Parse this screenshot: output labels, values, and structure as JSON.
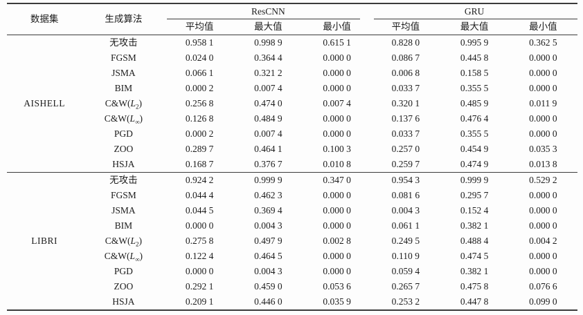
{
  "table": {
    "headers": {
      "dataset": "数据集",
      "algorithm": "生成算法",
      "group1": "ResCNN",
      "group2": "GRU",
      "sub": [
        "平均值",
        "最大值",
        "最小值"
      ]
    },
    "groups": [
      {
        "dataset": "AISHELL",
        "rows": [
          {
            "alg": "无攻击",
            "values": [
              "0.958 1",
              "0.998 9",
              "0.615 1",
              "0.828 0",
              "0.995 9",
              "0.362 5"
            ]
          },
          {
            "alg": "FGSM",
            "values": [
              "0.024 0",
              "0.364 4",
              "0.000 0",
              "0.086 7",
              "0.445 8",
              "0.000 0"
            ]
          },
          {
            "alg": "JSMA",
            "values": [
              "0.066 1",
              "0.321 2",
              "0.000 0",
              "0.006 8",
              "0.158 5",
              "0.000 0"
            ]
          },
          {
            "alg": "BIM",
            "values": [
              "0.000 2",
              "0.007 4",
              "0.000 0",
              "0.033 7",
              "0.355 5",
              "0.000 0"
            ]
          },
          {
            "alg": {
              "pre": "C&W(",
              "var": "L",
              "sub": "2",
              "post": ")"
            },
            "values": [
              "0.256 8",
              "0.474 0",
              "0.007 4",
              "0.320 1",
              "0.485 9",
              "0.011 9"
            ]
          },
          {
            "alg": {
              "pre": "C&W(",
              "var": "L",
              "sub": "∞",
              "post": ")"
            },
            "values": [
              "0.126 8",
              "0.484 9",
              "0.000 0",
              "0.137 6",
              "0.476 4",
              "0.000 0"
            ]
          },
          {
            "alg": "PGD",
            "values": [
              "0.000 2",
              "0.007 4",
              "0.000 0",
              "0.033 7",
              "0.355 5",
              "0.000 0"
            ]
          },
          {
            "alg": "ZOO",
            "values": [
              "0.289 7",
              "0.464 1",
              "0.100 3",
              "0.257 0",
              "0.454 9",
              "0.035 3"
            ]
          },
          {
            "alg": "HSJA",
            "values": [
              "0.168 7",
              "0.376 7",
              "0.010 8",
              "0.259 7",
              "0.474 9",
              "0.013 8"
            ]
          }
        ]
      },
      {
        "dataset": "LIBRI",
        "rows": [
          {
            "alg": "无攻击",
            "values": [
              "0.924 2",
              "0.999 9",
              "0.347 0",
              "0.954 3",
              "0.999 9",
              "0.529 2"
            ]
          },
          {
            "alg": "FGSM",
            "values": [
              "0.044 4",
              "0.462 3",
              "0.000 0",
              "0.081 6",
              "0.295 7",
              "0.000 0"
            ]
          },
          {
            "alg": "JSMA",
            "values": [
              "0.044 5",
              "0.369 4",
              "0.000 0",
              "0.004 3",
              "0.152 4",
              "0.000 0"
            ]
          },
          {
            "alg": "BIM",
            "values": [
              "0.000 0",
              "0.004 3",
              "0.000 0",
              "0.061 1",
              "0.382 1",
              "0.000 0"
            ]
          },
          {
            "alg": {
              "pre": "C&W(",
              "var": "L",
              "sub": "2",
              "post": ")"
            },
            "values": [
              "0.275 8",
              "0.497 9",
              "0.002 8",
              "0.249 5",
              "0.488 4",
              "0.004 2"
            ]
          },
          {
            "alg": {
              "pre": "C&W(",
              "var": "L",
              "sub": "∞",
              "post": ")"
            },
            "values": [
              "0.122 4",
              "0.464 5",
              "0.000 0",
              "0.110 9",
              "0.474 5",
              "0.000 0"
            ]
          },
          {
            "alg": "PGD",
            "values": [
              "0.000 0",
              "0.004 3",
              "0.000 0",
              "0.059 4",
              "0.382 1",
              "0.000 0"
            ]
          },
          {
            "alg": "ZOO",
            "values": [
              "0.292 1",
              "0.459 0",
              "0.053 6",
              "0.265 7",
              "0.475 8",
              "0.076 6"
            ]
          },
          {
            "alg": "HSJA",
            "values": [
              "0.209 1",
              "0.446 0",
              "0.035 9",
              "0.253 2",
              "0.447 8",
              "0.099 0"
            ]
          }
        ]
      }
    ]
  }
}
